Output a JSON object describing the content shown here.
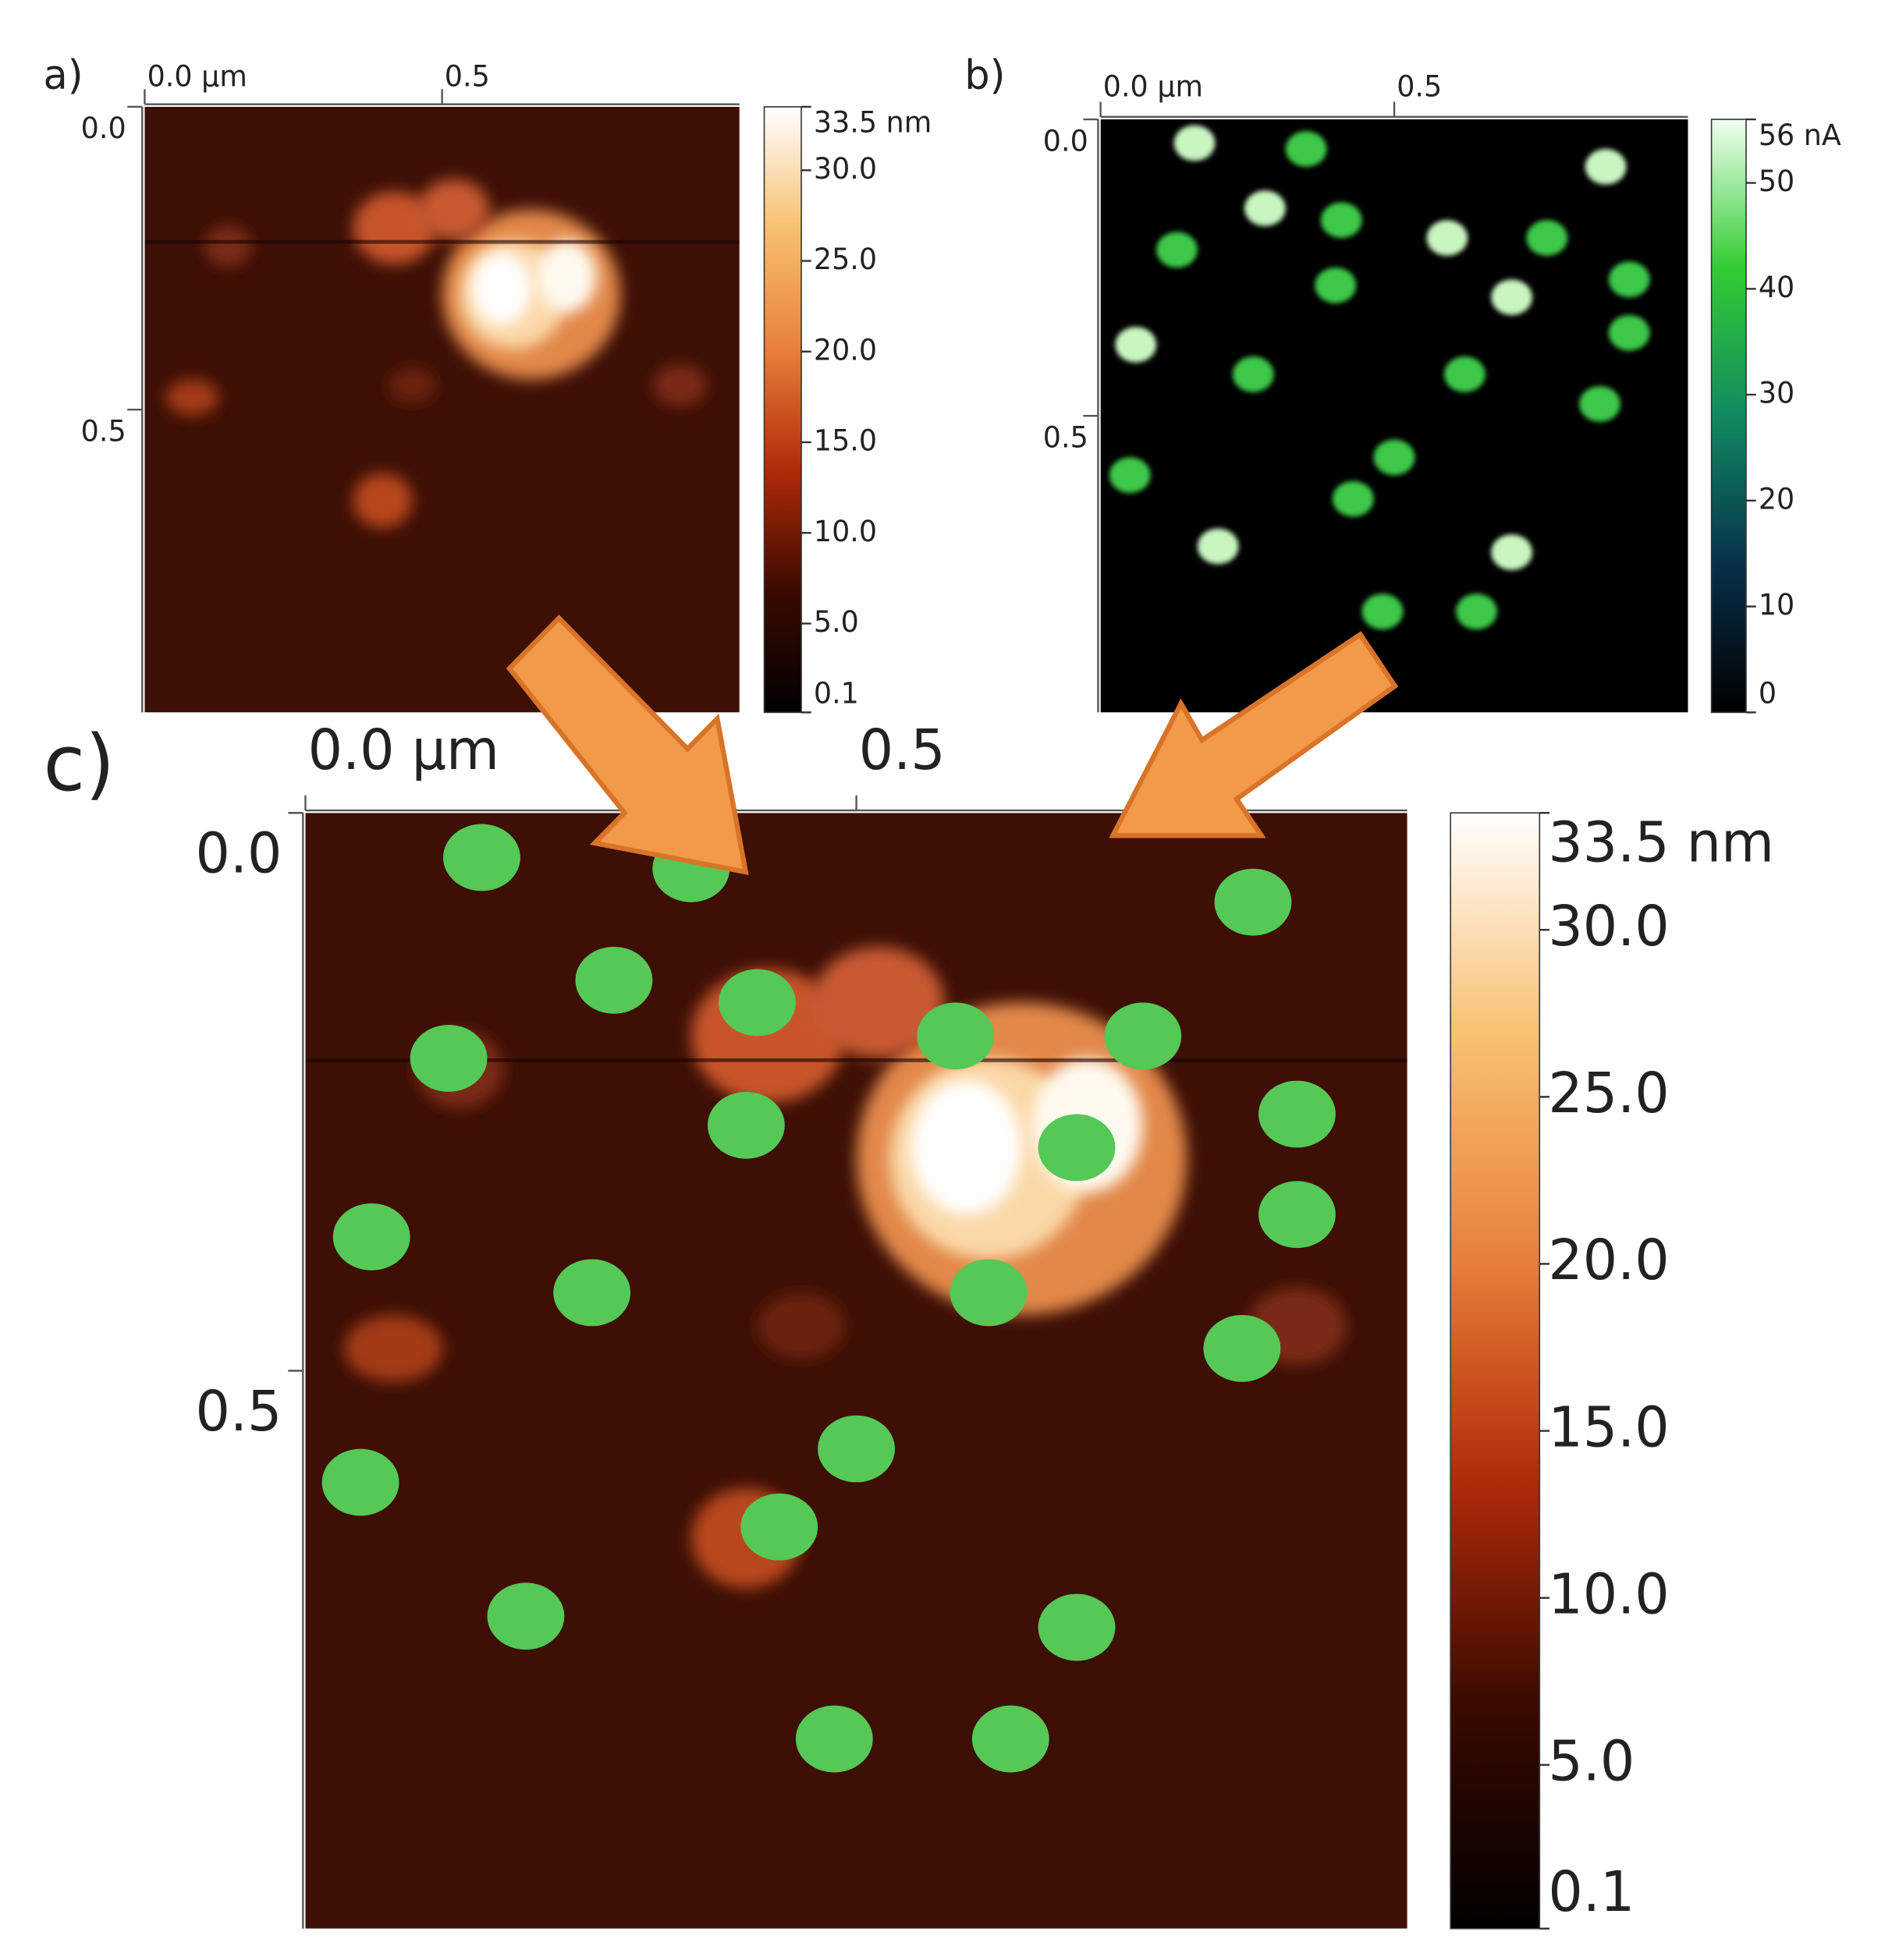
{
  "chart_data": [
    {
      "type": "heatmap",
      "panel_label": "a)",
      "xlim": [
        0,
        1
      ],
      "ylim": [
        0,
        1
      ],
      "xticks": [
        {
          "value": 0,
          "label": "0.0 µm"
        },
        0.5
      ],
      "yticks": [
        {
          "value": 0,
          "label": "0.0"
        },
        0.5
      ],
      "colorbar": {
        "clim": [
          0.1,
          33.5
        ],
        "colors": [
          "#000000",
          "#3a0a00",
          "#b02a08",
          "#e8803a",
          "#f8c070",
          "#ffffff"
        ],
        "ticks": [
          {
            "value": 33.5,
            "label": "33.5 nm"
          },
          {
            "value": 30,
            "label": "30.0"
          },
          {
            "value": 25,
            "label": "25.0"
          },
          {
            "value": 20,
            "label": "20.0"
          },
          {
            "value": 15,
            "label": "15.0"
          },
          {
            "value": 10,
            "label": "10.0"
          },
          {
            "value": 5,
            "label": "5.0"
          },
          0.1
        ]
      }
    },
    {
      "type": "heatmap",
      "panel_label": "b)",
      "xlim": [
        0,
        1
      ],
      "ylim": [
        0,
        1
      ],
      "xticks": [
        {
          "value": 0,
          "label": "0.0 µm"
        },
        0.5
      ],
      "yticks": [
        {
          "value": 0,
          "label": "0.0"
        },
        0.5
      ],
      "colorbar": {
        "clim": [
          0,
          56
        ],
        "colors": [
          "#000000",
          "#07304a",
          "#118a60",
          "#33cc33",
          "#f0fff0"
        ],
        "ticks": [
          {
            "value": 56,
            "label": "56 nA"
          },
          50,
          40,
          30,
          20,
          10,
          0
        ]
      }
    },
    {
      "type": "heatmap",
      "panel_label": "c)",
      "xlim": [
        0,
        1
      ],
      "ylim": [
        0,
        1
      ],
      "xticks": [
        {
          "value": 0,
          "label": "0.0 µm"
        },
        0.5
      ],
      "yticks": [
        {
          "value": 0,
          "label": "0.0"
        },
        0.5
      ],
      "colorbar": {
        "clim": [
          0.1,
          33.5
        ],
        "colors": [
          "#000000",
          "#3a0a00",
          "#b02a08",
          "#e8803a",
          "#f8c070",
          "#ffffff"
        ],
        "ticks": [
          {
            "value": 33.5,
            "label": "33.5 nm"
          },
          {
            "value": 30,
            "label": "30.0"
          },
          {
            "value": 25,
            "label": "25.0"
          },
          {
            "value": 20,
            "label": "20.0"
          },
          {
            "value": 15,
            "label": "15.0"
          },
          {
            "value": 10,
            "label": "10.0"
          },
          {
            "value": 5,
            "label": "5.0"
          },
          0.1
        ]
      }
    }
  ]
}
